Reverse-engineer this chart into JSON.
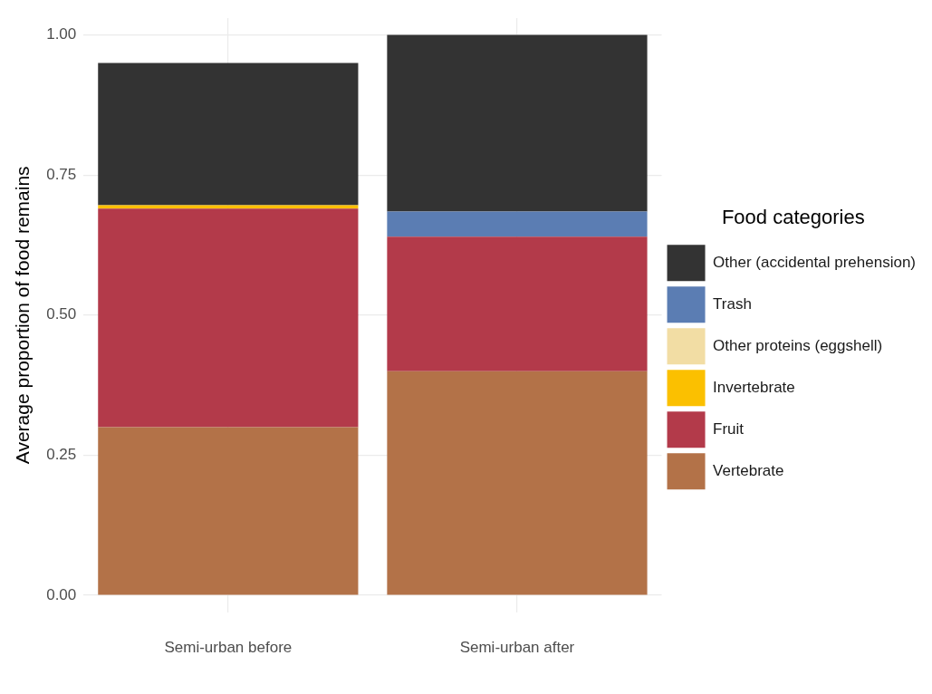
{
  "chart_data": {
    "type": "bar",
    "stacked": true,
    "categories": [
      "Semi-urban before",
      "Semi-urban after"
    ],
    "ylabel": "Average proportion of food remains",
    "legend_title": "Food categories",
    "legend": "right",
    "grid": true,
    "ylim": [
      -0.03,
      1.03
    ],
    "yticks": [
      {
        "value": 0,
        "label": "0.00"
      },
      {
        "value": 0.25,
        "label": "0.25"
      },
      {
        "value": 0.5,
        "label": "0.50"
      },
      {
        "value": 0.75,
        "label": "0.75"
      },
      {
        "value": 1,
        "label": "1.00"
      }
    ],
    "series": [
      {
        "name": "Vertebrate",
        "color": "#b37248",
        "values": [
          0.3,
          0.4
        ]
      },
      {
        "name": "Fruit",
        "color": "#b33a4a",
        "values": [
          0.39,
          0.24
        ]
      },
      {
        "name": "Invertebrate",
        "color": "#fbc000",
        "values": [
          0.006,
          0
        ]
      },
      {
        "name": "Other proteins (eggshell)",
        "color": "#f2dda4",
        "values": [
          0,
          0
        ]
      },
      {
        "name": "Trash",
        "color": "#5b7db3",
        "values": [
          0,
          0.045
        ]
      },
      {
        "name": "Other (accidental prehension)",
        "color": "#333333",
        "values": [
          0.254,
          0.315
        ]
      }
    ]
  }
}
